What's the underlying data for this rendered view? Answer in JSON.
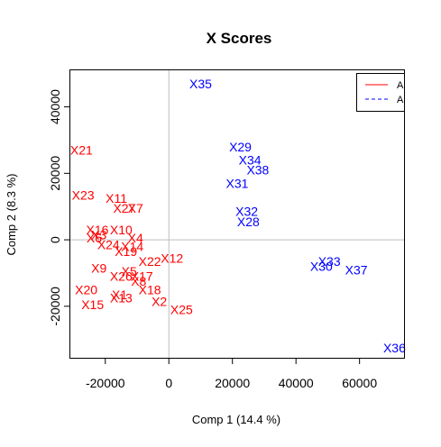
{
  "chart_data": {
    "type": "scatter",
    "title": "X Scores",
    "xlabel": "Comp 1 (14.4 %)",
    "ylabel": "Comp 2 (8.3 %)",
    "xlim": [
      -31000,
      74000
    ],
    "ylim": [
      -35500,
      51000
    ],
    "xticks": [
      -20000,
      0,
      20000,
      40000,
      60000
    ],
    "xtick_labels": [
      "-20000",
      "0",
      "20000",
      "40000",
      "60000"
    ],
    "yticks": [
      -20000,
      0,
      20000,
      40000
    ],
    "ytick_labels": [
      "-20000",
      "0",
      "20000",
      "40000"
    ],
    "reference_lines": {
      "x": 0,
      "y": 0
    },
    "legend": {
      "placement": "top-right",
      "entries": [
        {
          "label": "A",
          "color": "#ff0000",
          "line": "solid"
        },
        {
          "label": "A",
          "color": "#0000ff",
          "line": "dashed"
        }
      ]
    },
    "series": [
      {
        "color": "#ff0000",
        "points": [
          {
            "label": "X1",
            "x": -15500,
            "y": -16500
          },
          {
            "label": "X2",
            "x": -3000,
            "y": -18500
          },
          {
            "label": "X4",
            "x": -10500,
            "y": 500
          },
          {
            "label": "X5",
            "x": -12500,
            "y": -9500
          },
          {
            "label": "X7",
            "x": -10500,
            "y": 9500
          },
          {
            "label": "X8",
            "x": -9500,
            "y": -12500
          },
          {
            "label": "X9",
            "x": -22000,
            "y": -8500
          },
          {
            "label": "X10",
            "x": -15000,
            "y": 3000
          },
          {
            "label": "X11",
            "x": -16500,
            "y": 12500
          },
          {
            "label": "X12",
            "x": 1000,
            "y": -5500
          },
          {
            "label": "X13",
            "x": -15000,
            "y": -17500
          },
          {
            "label": "X14",
            "x": -11500,
            "y": -2000
          },
          {
            "label": "X15",
            "x": -24000,
            "y": -19500
          },
          {
            "label": "X16",
            "x": -22500,
            "y": 3000
          },
          {
            "label": "X17",
            "x": -8500,
            "y": -11000
          },
          {
            "label": "X18",
            "x": -6000,
            "y": -15000
          },
          {
            "label": "X19",
            "x": -13500,
            "y": -3500
          },
          {
            "label": "X20",
            "x": -26000,
            "y": -15000
          },
          {
            "label": "X21",
            "x": -27500,
            "y": 27000
          },
          {
            "label": "X22",
            "x": -6000,
            "y": -6500
          },
          {
            "label": "X23",
            "x": -27000,
            "y": 13500
          },
          {
            "label": "X24",
            "x": -19000,
            "y": -1500
          },
          {
            "label": "X25",
            "x": 4000,
            "y": -21000
          },
          {
            "label": "X26",
            "x": -15000,
            "y": -11000
          },
          {
            "label": "X27",
            "x": -14000,
            "y": 9500
          },
          {
            "label": "X3",
            "x": -22000,
            "y": 1500
          },
          {
            "label": "X6",
            "x": -23500,
            "y": 500
          }
        ]
      },
      {
        "color": "#0000ff",
        "points": [
          {
            "label": "X28",
            "x": 25000,
            "y": 5500
          },
          {
            "label": "X29",
            "x": 22500,
            "y": 28000
          },
          {
            "label": "X30",
            "x": 48000,
            "y": -8000
          },
          {
            "label": "X31",
            "x": 21500,
            "y": 17000
          },
          {
            "label": "X32",
            "x": 24500,
            "y": 8500
          },
          {
            "label": "X33",
            "x": 50500,
            "y": -6500
          },
          {
            "label": "X34",
            "x": 25500,
            "y": 24000
          },
          {
            "label": "X35",
            "x": 10000,
            "y": 47000
          },
          {
            "label": "X36",
            "x": 71000,
            "y": -32500
          },
          {
            "label": "X37",
            "x": 59000,
            "y": -9000
          },
          {
            "label": "X38",
            "x": 28000,
            "y": 21000
          }
        ]
      }
    ]
  }
}
